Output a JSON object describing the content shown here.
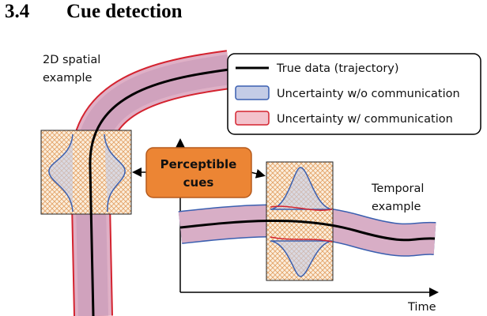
{
  "heading": {
    "number": "3.4",
    "title": "Cue detection"
  },
  "figure": {
    "spatial_label": [
      "2D spatial",
      "example"
    ],
    "legend": [
      "True data (trajectory)",
      "Uncertainty w/o communication",
      "Uncertainty w/ communication"
    ],
    "cue_box": [
      "Perceptible",
      "cues"
    ],
    "temporal_label": [
      "Temporal",
      "example"
    ],
    "x_axis_label": "Time"
  }
}
